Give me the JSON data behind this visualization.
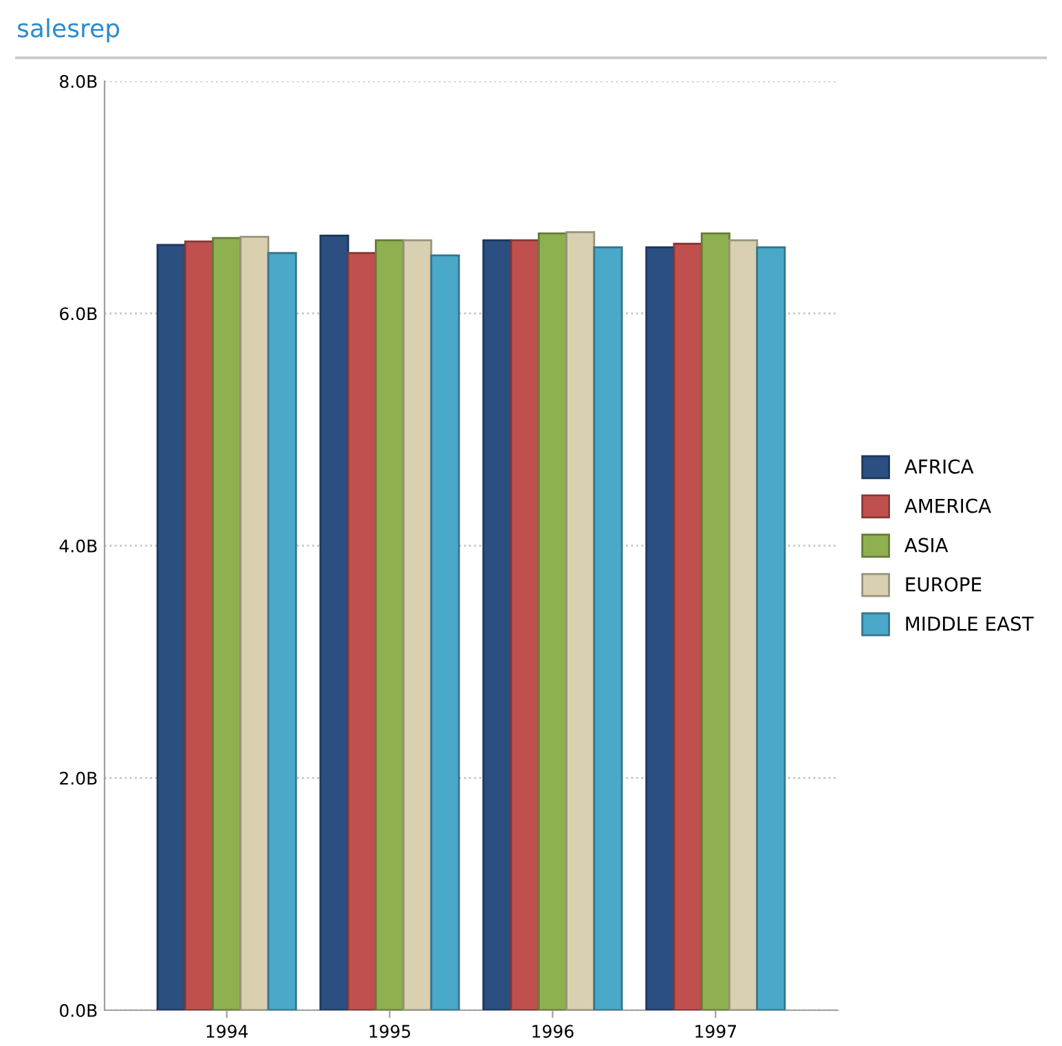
{
  "chart_data": {
    "type": "bar",
    "title": "salesrep",
    "categories": [
      "1994",
      "1995",
      "1996",
      "1997"
    ],
    "series": [
      {
        "name": "AFRICA",
        "color": "#2a4f80",
        "values": [
          6.59,
          6.67,
          6.63,
          6.57
        ]
      },
      {
        "name": "AMERICA",
        "color": "#c0504d",
        "values": [
          6.62,
          6.52,
          6.63,
          6.6
        ]
      },
      {
        "name": "ASIA",
        "color": "#8fb050",
        "values": [
          6.65,
          6.63,
          6.69,
          6.69
        ]
      },
      {
        "name": "EUROPE",
        "color": "#d8d0b0",
        "values": [
          6.66,
          6.63,
          6.7,
          6.63
        ]
      },
      {
        "name": "MIDDLE EAST",
        "color": "#4aa8c8",
        "values": [
          6.52,
          6.5,
          6.57,
          6.57
        ]
      }
    ],
    "ylim": [
      0,
      8
    ],
    "yticks": [
      {
        "value": 0,
        "label": "0.0B"
      },
      {
        "value": 2,
        "label": "2.0B"
      },
      {
        "value": 4,
        "label": "4.0B"
      },
      {
        "value": 6,
        "label": "6.0B"
      },
      {
        "value": 8,
        "label": "8.0B"
      }
    ],
    "grid": "y",
    "legend": "right"
  }
}
